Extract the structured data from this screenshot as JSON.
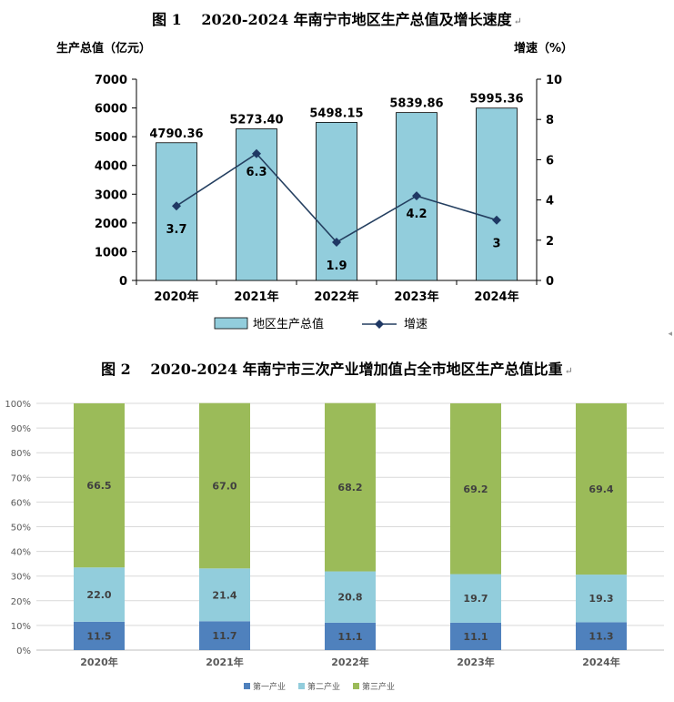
{
  "chart_data": [
    {
      "type": "bar+line",
      "title": "图 1　 2020-2024 年南宁市地区生产总值及增长速度",
      "ylabel_left": "生产总值（亿元）",
      "ylabel_right": "增速（%）",
      "categories": [
        "2020年",
        "2021年",
        "2022年",
        "2023年",
        "2024年"
      ],
      "ylim_left": [
        0,
        7000
      ],
      "yticks_left": [
        "0",
        "1000",
        "2000",
        "3000",
        "4000",
        "5000",
        "6000",
        "7000"
      ],
      "ylim_right": [
        0,
        10
      ],
      "yticks_right": [
        "0",
        "2",
        "4",
        "6",
        "8",
        "10"
      ],
      "series": [
        {
          "name": "地区生产总值",
          "type": "bar",
          "axis": "left",
          "values": [
            4790.36,
            5273.4,
            5498.15,
            5839.86,
            5995.36
          ],
          "labels": [
            "4790.36",
            "5273.40",
            "5498.15",
            "5839.86",
            "5995.36"
          ]
        },
        {
          "name": "增速",
          "type": "line",
          "axis": "right",
          "values": [
            3.7,
            6.3,
            1.9,
            4.2,
            3
          ],
          "labels": [
            "3.7",
            "6.3",
            "1.9",
            "4.2",
            "3"
          ]
        }
      ],
      "colors": {
        "bar": "#92cddc",
        "bar_border": "#000000",
        "line": "#243f60",
        "marker": "#1f3864"
      },
      "legend": "bottom"
    },
    {
      "type": "stacked-bar",
      "title": "图 2　 2020-2024 年南宁市三次产业增加值占全市地区生产总值比重",
      "categories": [
        "2020年",
        "2021年",
        "2022年",
        "2023年",
        "2024年"
      ],
      "ylim": [
        0,
        100
      ],
      "yticks": [
        "0%",
        "10%",
        "20%",
        "30%",
        "40%",
        "50%",
        "60%",
        "70%",
        "80%",
        "90%",
        "100%"
      ],
      "series": [
        {
          "name": "第一产业",
          "values": [
            11.5,
            11.7,
            11.1,
            11.1,
            11.3
          ],
          "labels": [
            "11.5",
            "11.7",
            "11.1",
            "11.1",
            "11.3"
          ]
        },
        {
          "name": "第二产业",
          "values": [
            22.0,
            21.4,
            20.8,
            19.7,
            19.3
          ],
          "labels": [
            "22.0",
            "21.4",
            "20.8",
            "19.7",
            "19.3"
          ]
        },
        {
          "name": "第三产业",
          "values": [
            66.5,
            67.0,
            68.2,
            69.2,
            69.4
          ],
          "labels": [
            "66.5",
            "67.0",
            "68.2",
            "69.2",
            "69.4"
          ]
        }
      ],
      "colors": {
        "第一产业": "#4f81bd",
        "第二产业": "#92cddc",
        "第三产业": "#9bbb59"
      },
      "legend": "bottom"
    }
  ]
}
